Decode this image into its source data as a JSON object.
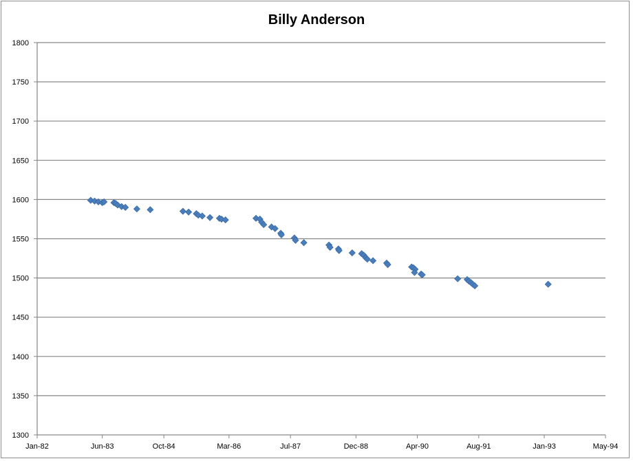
{
  "chart_data": {
    "type": "scatter",
    "title": "Billy Anderson",
    "xlabel": "",
    "ylabel": "",
    "ylim": [
      1300,
      1800
    ],
    "yticks": [
      1300,
      1350,
      1400,
      1450,
      1500,
      1550,
      1600,
      1650,
      1700,
      1750,
      1800
    ],
    "ytick_labels": [
      "1300",
      "1350",
      "1400",
      "1450",
      "1500",
      "1550",
      "1600",
      "1650",
      "1700",
      "1750",
      "1800"
    ],
    "xlim": [
      "1982-01-01",
      "1994-05-01"
    ],
    "xticks": [
      "1982-01-01",
      "1983-06-01",
      "1984-10-01",
      "1986-03-01",
      "1987-07-01",
      "1988-12-01",
      "1990-04-01",
      "1991-08-01",
      "1993-01-01",
      "1994-05-01"
    ],
    "xtick_labels": [
      "Jan-82",
      "Jun-83",
      "Oct-84",
      "Mar-86",
      "Jul-87",
      "Dec-88",
      "Apr-90",
      "Aug-91",
      "Jan-93",
      "May-94"
    ],
    "grid": "horizontal",
    "legend": "none",
    "marker": "diamond",
    "color": "#4a7ebb",
    "series": [
      {
        "points": [
          [
            "1983-03-01",
            1599
          ],
          [
            "1983-04-01",
            1598
          ],
          [
            "1983-05-01",
            1597
          ],
          [
            "1983-06-01",
            1596
          ],
          [
            "1983-06-15",
            1597
          ],
          [
            "1983-09-01",
            1596
          ],
          [
            "1983-09-15",
            1595
          ],
          [
            "1983-10-01",
            1593
          ],
          [
            "1983-11-01",
            1591
          ],
          [
            "1983-12-01",
            1590
          ],
          [
            "1984-03-01",
            1588
          ],
          [
            "1984-06-15",
            1587
          ],
          [
            "1985-03-01",
            1585
          ],
          [
            "1985-04-15",
            1584
          ],
          [
            "1985-06-15",
            1582
          ],
          [
            "1985-07-01",
            1580
          ],
          [
            "1985-08-01",
            1579
          ],
          [
            "1985-10-01",
            1577
          ],
          [
            "1985-12-15",
            1576
          ],
          [
            "1986-01-01",
            1575
          ],
          [
            "1986-02-01",
            1574
          ],
          [
            "1986-10-01",
            1576
          ],
          [
            "1986-11-01",
            1575
          ],
          [
            "1986-11-15",
            1571
          ],
          [
            "1986-12-01",
            1568
          ],
          [
            "1987-02-01",
            1565
          ],
          [
            "1987-03-01",
            1563
          ],
          [
            "1987-04-15",
            1557
          ],
          [
            "1987-04-20",
            1555
          ],
          [
            "1987-08-01",
            1551
          ],
          [
            "1987-08-10",
            1548
          ],
          [
            "1987-10-15",
            1545
          ],
          [
            "1988-05-01",
            1542
          ],
          [
            "1988-05-10",
            1539
          ],
          [
            "1988-07-15",
            1537
          ],
          [
            "1988-07-20",
            1535
          ],
          [
            "1988-11-01",
            1532
          ],
          [
            "1989-01-15",
            1531
          ],
          [
            "1989-02-01",
            1529
          ],
          [
            "1989-02-15",
            1526
          ],
          [
            "1989-03-01",
            1524
          ],
          [
            "1989-04-15",
            1522
          ],
          [
            "1989-08-01",
            1519
          ],
          [
            "1989-08-10",
            1517
          ],
          [
            "1990-02-15",
            1514
          ],
          [
            "1990-03-01",
            1513
          ],
          [
            "1990-03-15",
            1511
          ],
          [
            "1990-03-10",
            1507
          ],
          [
            "1990-05-01",
            1505
          ],
          [
            "1990-05-10",
            1504
          ],
          [
            "1991-02-15",
            1499
          ],
          [
            "1991-05-01",
            1498
          ],
          [
            "1991-05-15",
            1496
          ],
          [
            "1991-06-01",
            1494
          ],
          [
            "1991-06-15",
            1492
          ],
          [
            "1991-07-01",
            1490
          ],
          [
            "1993-02-01",
            1492
          ]
        ]
      }
    ]
  }
}
